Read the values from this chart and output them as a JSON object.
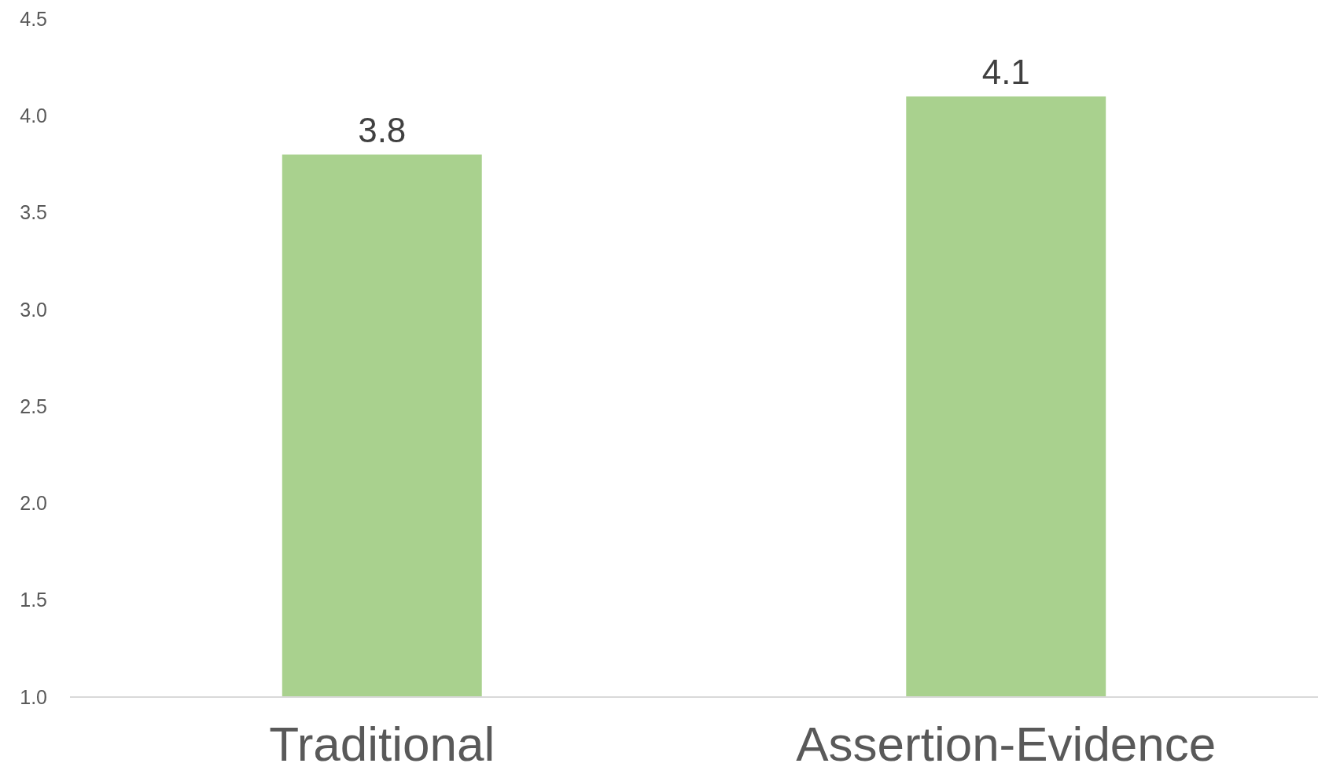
{
  "chart_data": {
    "type": "bar",
    "categories": [
      "Traditional",
      "Assertion-Evidence"
    ],
    "values": [
      3.8,
      4.1
    ],
    "color": "#a9d18e",
    "data_labels": true,
    "ylim": [
      1.0,
      4.5
    ],
    "yticks": [
      {
        "value": 1,
        "label": "1.0"
      },
      {
        "value": 1.5,
        "label": "1.5"
      },
      {
        "value": 2,
        "label": "2.0"
      },
      {
        "value": 2.5,
        "label": "2.5"
      },
      {
        "value": 3,
        "label": "3.0"
      },
      {
        "value": 3.5,
        "label": "3.5"
      },
      {
        "value": 4,
        "label": "4.0"
      },
      {
        "value": 4.5,
        "label": "4.5"
      }
    ],
    "grid": false
  }
}
